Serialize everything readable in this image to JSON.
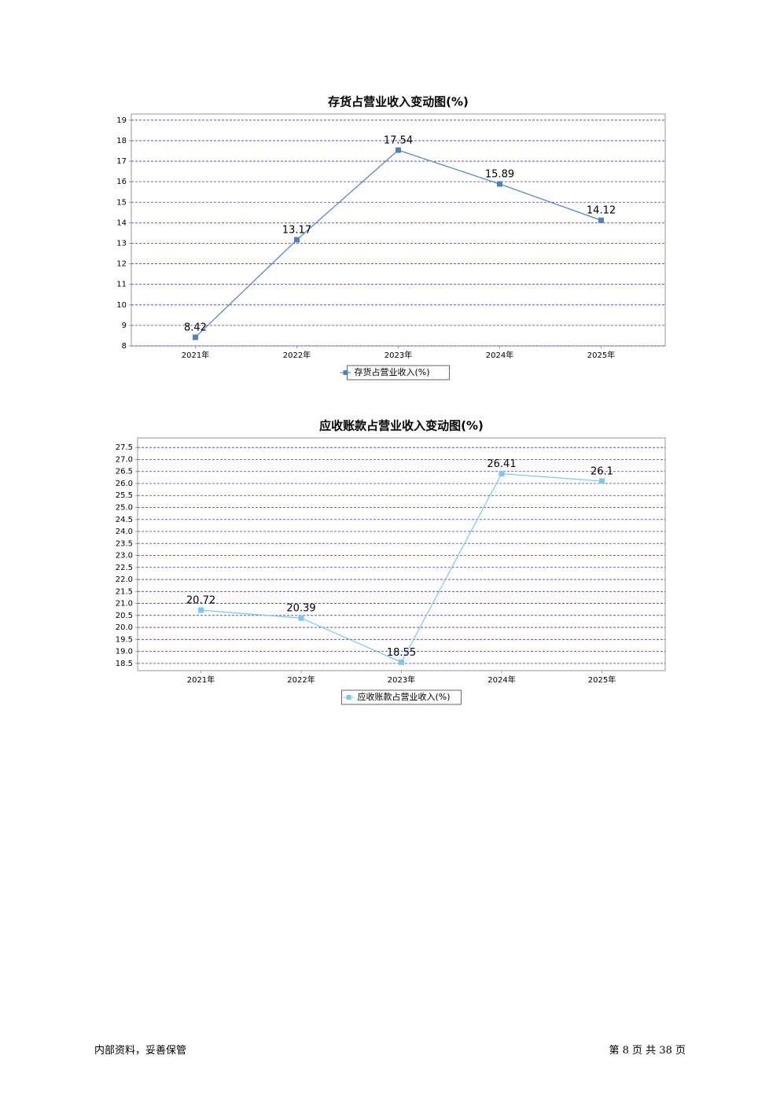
{
  "chart_data": [
    {
      "type": "line",
      "title": "存货占营业收入变动图(%)",
      "categories": [
        "2021年",
        "2022年",
        "2023年",
        "2024年",
        "2025年"
      ],
      "series": [
        {
          "name": "存货占营业收入(%)",
          "color": "#4f81bd",
          "values": [
            8.42,
            13.17,
            17.54,
            15.89,
            14.12
          ]
        }
      ],
      "ylim": [
        8,
        19.3
      ],
      "yticks": [
        8,
        9,
        10,
        11,
        12,
        13,
        14,
        15,
        16,
        17,
        18,
        19
      ],
      "grid": true
    },
    {
      "type": "line",
      "title": "应收账款占营业收入变动图(%)",
      "categories": [
        "2021年",
        "2022年",
        "2023年",
        "2024年",
        "2025年"
      ],
      "series": [
        {
          "name": "应收账款占营业收入(%)",
          "color": "#7ec8f0",
          "values": [
            20.72,
            20.39,
            18.55,
            26.41,
            26.1
          ]
        }
      ],
      "ylim": [
        18.2,
        27.9
      ],
      "yticks": [
        18.5,
        {
          "value": 19,
          "label": "19.0"
        },
        19.5,
        {
          "value": 20,
          "label": "20.0"
        },
        20.5,
        {
          "value": 21,
          "label": "21.0"
        },
        21.5,
        {
          "value": 22,
          "label": "22.0"
        },
        22.5,
        {
          "value": 23,
          "label": "23.0"
        },
        23.5,
        {
          "value": 24,
          "label": "24.0"
        },
        24.5,
        {
          "value": 25,
          "label": "25.0"
        },
        25.5,
        {
          "value": 26,
          "label": "26.0"
        },
        26.5,
        {
          "value": 27,
          "label": "27.0"
        },
        27.5
      ],
      "grid": true
    }
  ],
  "footer": {
    "left": "内部资料，妥善保管",
    "right": "第 8 页 共 38 页"
  }
}
